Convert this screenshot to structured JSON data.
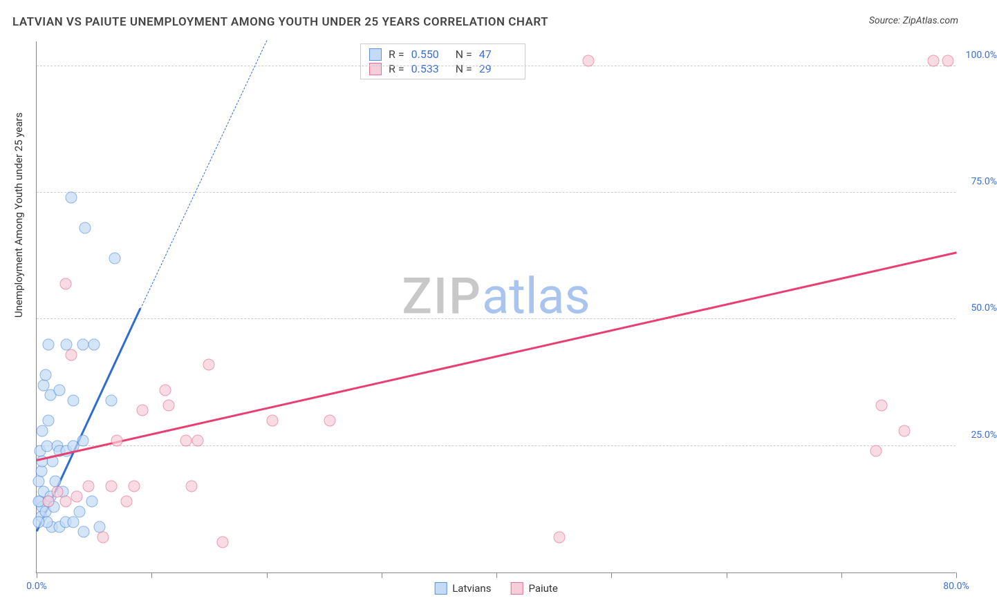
{
  "title": "LATVIAN VS PAIUTE UNEMPLOYMENT AMONG YOUTH UNDER 25 YEARS CORRELATION CHART",
  "source": "Source: ZipAtlas.com",
  "y_axis_title": "Unemployment Among Youth under 25 years",
  "watermark": {
    "part1": "ZIP",
    "part2": "atlas"
  },
  "chart": {
    "type": "scatter",
    "xlim": [
      0,
      80
    ],
    "ylim": [
      0,
      105
    ],
    "x_ticks": [
      0,
      10,
      20,
      30,
      40,
      50,
      60,
      70,
      80
    ],
    "x_tick_labels": {
      "0": "0.0%",
      "80": "80.0%"
    },
    "y_gridlines": [
      25,
      50,
      75,
      100
    ],
    "y_tick_labels": {
      "25": "25.0%",
      "50": "50.0%",
      "75": "75.0%",
      "100": "100.0%"
    },
    "background_color": "#ffffff",
    "grid_color": "#cccccc",
    "axis_color": "#888888",
    "label_color": "#3b6fd6",
    "marker_radius": 8.5,
    "series": [
      {
        "name": "Latvians",
        "fill": "#c3dbf6",
        "stroke": "#5a93de",
        "opacity": 0.7,
        "R": "0.550",
        "N": "47",
        "trend": {
          "x1": 0,
          "y1": 8,
          "x2": 9,
          "y2": 52,
          "color": "#2f6bd0",
          "width": 2.5,
          "ext_x2": 20,
          "ext_y2": 105
        },
        "points": [
          [
            0.3,
            14
          ],
          [
            0.5,
            13
          ],
          [
            0.4,
            11
          ],
          [
            0.8,
            12
          ],
          [
            1.0,
            14
          ],
          [
            0.6,
            16
          ],
          [
            0.2,
            18
          ],
          [
            0.4,
            20
          ],
          [
            1.2,
            15
          ],
          [
            1.5,
            13
          ],
          [
            0.3,
            24
          ],
          [
            0.9,
            25
          ],
          [
            1.8,
            25
          ],
          [
            2.0,
            24
          ],
          [
            2.6,
            24
          ],
          [
            3.2,
            25
          ],
          [
            4.0,
            26
          ],
          [
            0.5,
            28
          ],
          [
            1.0,
            30
          ],
          [
            1.3,
            9
          ],
          [
            2.0,
            9
          ],
          [
            2.5,
            10
          ],
          [
            3.2,
            10
          ],
          [
            4.1,
            8
          ],
          [
            5.5,
            9
          ],
          [
            4.8,
            14
          ],
          [
            1.2,
            35
          ],
          [
            0.6,
            37
          ],
          [
            2.0,
            36
          ],
          [
            0.8,
            39
          ],
          [
            2.6,
            45
          ],
          [
            4.0,
            45
          ],
          [
            1.0,
            45
          ],
          [
            5.0,
            45
          ],
          [
            3.2,
            34
          ],
          [
            6.5,
            34
          ],
          [
            6.8,
            62
          ],
          [
            4.2,
            68
          ],
          [
            3.0,
            74
          ],
          [
            0.5,
            22
          ],
          [
            1.6,
            18
          ],
          [
            2.3,
            16
          ],
          [
            0.9,
            10
          ],
          [
            1.4,
            22
          ],
          [
            0.2,
            14
          ],
          [
            3.7,
            12
          ],
          [
            0.2,
            10
          ]
        ]
      },
      {
        "name": "Paiute",
        "fill": "#f7cdd9",
        "stroke": "#e56f94",
        "opacity": 0.7,
        "R": "0.533",
        "N": "29",
        "trend": {
          "x1": 0,
          "y1": 22,
          "x2": 80,
          "y2": 63,
          "color": "#e83e70",
          "width": 2.5
        },
        "points": [
          [
            1.0,
            14
          ],
          [
            1.8,
            16
          ],
          [
            2.5,
            14
          ],
          [
            3.5,
            15
          ],
          [
            4.5,
            17
          ],
          [
            6.5,
            17
          ],
          [
            7.8,
            14
          ],
          [
            8.5,
            17
          ],
          [
            7.0,
            26
          ],
          [
            9.2,
            32
          ],
          [
            11.2,
            36
          ],
          [
            13.0,
            26
          ],
          [
            14.0,
            26
          ],
          [
            13.5,
            17
          ],
          [
            16.2,
            6
          ],
          [
            11.5,
            33
          ],
          [
            15.0,
            41
          ],
          [
            20.5,
            30
          ],
          [
            25.5,
            30
          ],
          [
            3.0,
            43
          ],
          [
            2.5,
            57
          ],
          [
            45.5,
            7
          ],
          [
            48.0,
            101
          ],
          [
            73.5,
            33
          ],
          [
            75.5,
            28
          ],
          [
            73.0,
            24
          ],
          [
            78.0,
            101
          ],
          [
            79.3,
            101
          ],
          [
            5.8,
            7
          ]
        ]
      }
    ]
  },
  "stat_box": {
    "R_label": "R =",
    "N_label": "N ="
  },
  "legend": [
    "Latvians",
    "Paiute"
  ]
}
